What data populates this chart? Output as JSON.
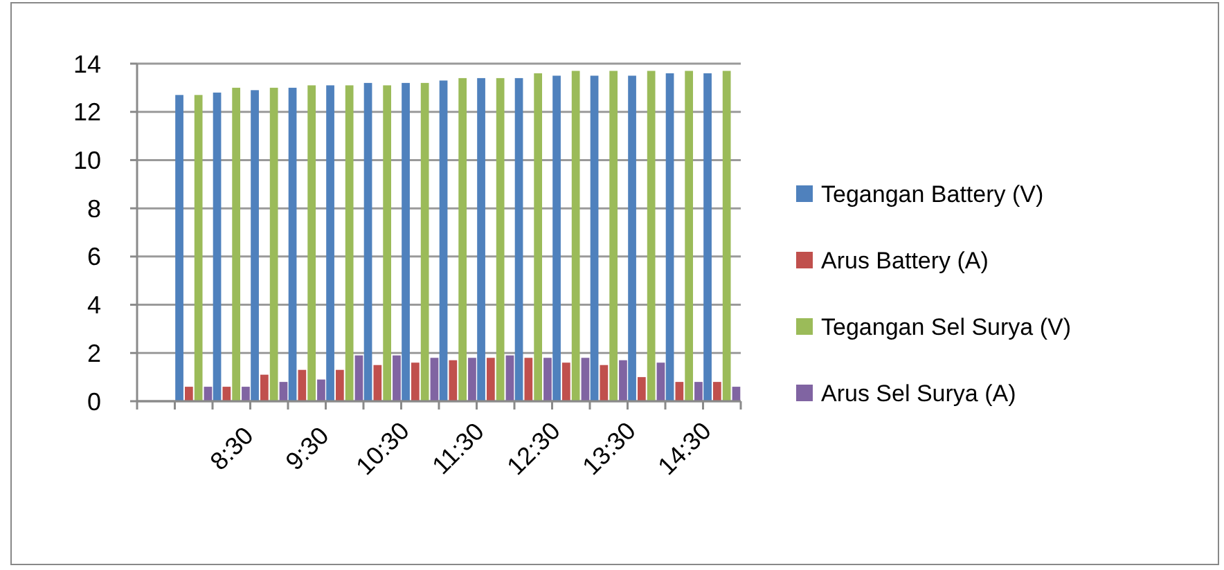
{
  "chart_data": {
    "type": "bar",
    "categories": [
      null,
      null,
      "8:30",
      null,
      "9:30",
      null,
      "10:30",
      null,
      "11:30",
      null,
      "12:30",
      null,
      "13:30",
      null,
      "14:30",
      null
    ],
    "series": [
      {
        "name": "Tegangan Battery (V)",
        "color": "#4f81bd",
        "values": [
          null,
          12.7,
          12.8,
          12.9,
          13.0,
          13.1,
          13.2,
          13.2,
          13.3,
          13.4,
          13.4,
          13.5,
          13.5,
          13.5,
          13.6,
          13.6
        ]
      },
      {
        "name": "Arus Battery (A)",
        "color": "#c0504d",
        "values": [
          null,
          0.6,
          0.6,
          1.1,
          1.3,
          1.3,
          1.5,
          1.6,
          1.7,
          1.8,
          1.8,
          1.6,
          1.5,
          1.0,
          0.8,
          0.8
        ]
      },
      {
        "name": "Tegangan Sel Surya (V)",
        "color": "#9bbb59",
        "values": [
          null,
          12.7,
          13.0,
          13.0,
          13.1,
          13.1,
          13.1,
          13.2,
          13.4,
          13.4,
          13.6,
          13.7,
          13.7,
          13.7,
          13.7,
          13.7
        ]
      },
      {
        "name": "Arus Sel Surya (A)",
        "color": "#8064a2",
        "values": [
          null,
          0.6,
          0.6,
          0.8,
          0.9,
          1.9,
          1.9,
          1.8,
          1.8,
          1.9,
          1.8,
          1.8,
          1.7,
          1.6,
          0.8,
          0.6
        ]
      }
    ],
    "ylim": [
      0,
      14
    ],
    "yticks": [
      0,
      2,
      4,
      6,
      8,
      10,
      12,
      14
    ],
    "grid": "y",
    "legend": "right"
  }
}
